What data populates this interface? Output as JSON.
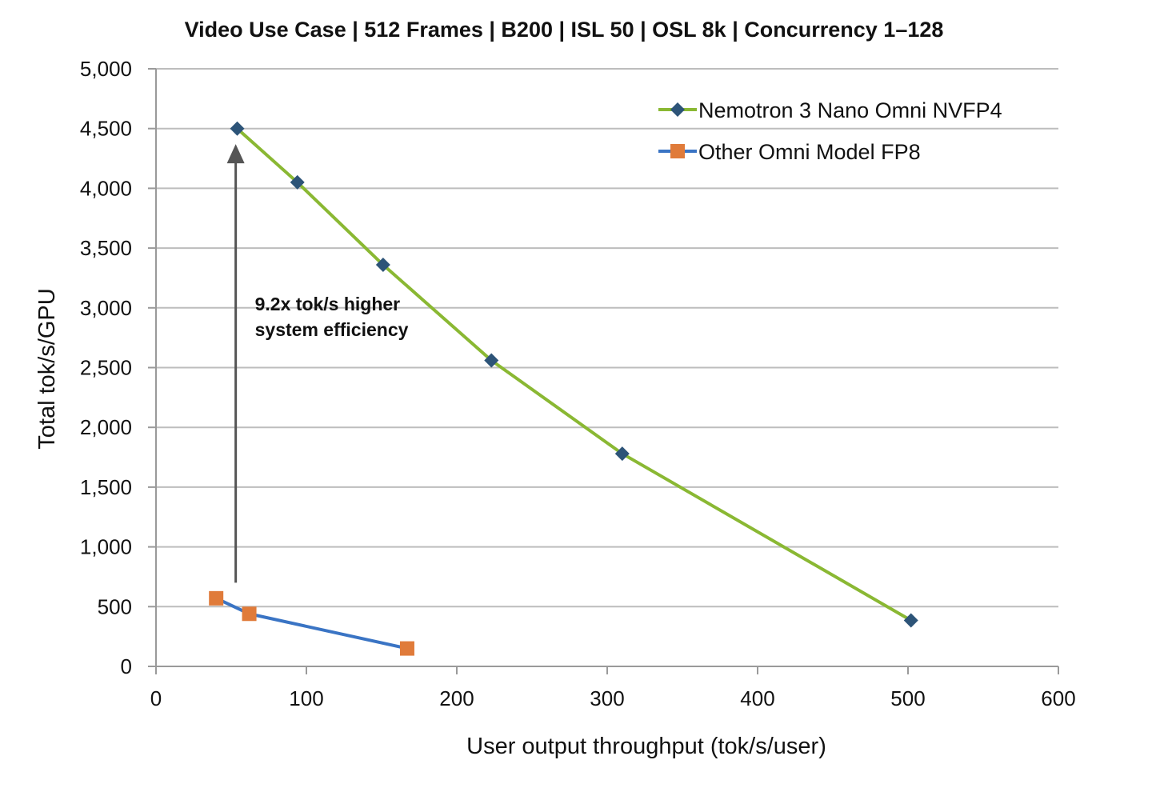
{
  "chart_data": {
    "type": "line",
    "title": "Video Use Case | 512 Frames  | B200 | ISL 50 | OSL 8k | Concurrency 1–128",
    "xlabel": "User output throughput (tok/s/user)",
    "ylabel": "Total tok/s/GPU",
    "xlim": [
      0,
      600
    ],
    "ylim": [
      0,
      5000
    ],
    "xticks": [
      0,
      100,
      200,
      300,
      400,
      500,
      600
    ],
    "xtick_labels": [
      "0",
      "100",
      "200",
      "300",
      "400",
      "500",
      "600"
    ],
    "yticks": [
      0,
      500,
      1000,
      1500,
      2000,
      2500,
      3000,
      3500,
      4000,
      4500,
      5000
    ],
    "ytick_labels": [
      "0",
      "500",
      "1,000",
      "1,500",
      "2,000",
      "2,500",
      "3,000",
      "3,500",
      "4,000",
      "4,500",
      "5,000"
    ],
    "grid": "horizontal",
    "legend_position": "top-right",
    "series": [
      {
        "name": "Nemotron 3 Nano Omni NVFP4",
        "line_color": "#8ab833",
        "marker_color": "#2d5478",
        "marker": "diamond",
        "points": [
          {
            "x": 54,
            "y": 4500
          },
          {
            "x": 94,
            "y": 4050
          },
          {
            "x": 151,
            "y": 3360
          },
          {
            "x": 223,
            "y": 2560
          },
          {
            "x": 310,
            "y": 1780
          },
          {
            "x": 502,
            "y": 385
          }
        ]
      },
      {
        "name": "Other Omni Model FP8",
        "line_color": "#3a74c4",
        "marker_color": "#e07b3a",
        "marker": "square",
        "points": [
          {
            "x": 40,
            "y": 570
          },
          {
            "x": 62,
            "y": 440
          },
          {
            "x": 167,
            "y": 150
          }
        ]
      }
    ],
    "annotations": [
      {
        "lines": [
          "9.2x tok/s higher",
          "system efficiency"
        ],
        "arrow_x": 53,
        "arrow_from_y": 700,
        "arrow_to_y": 4370,
        "arrow_color": "#555555"
      }
    ]
  }
}
